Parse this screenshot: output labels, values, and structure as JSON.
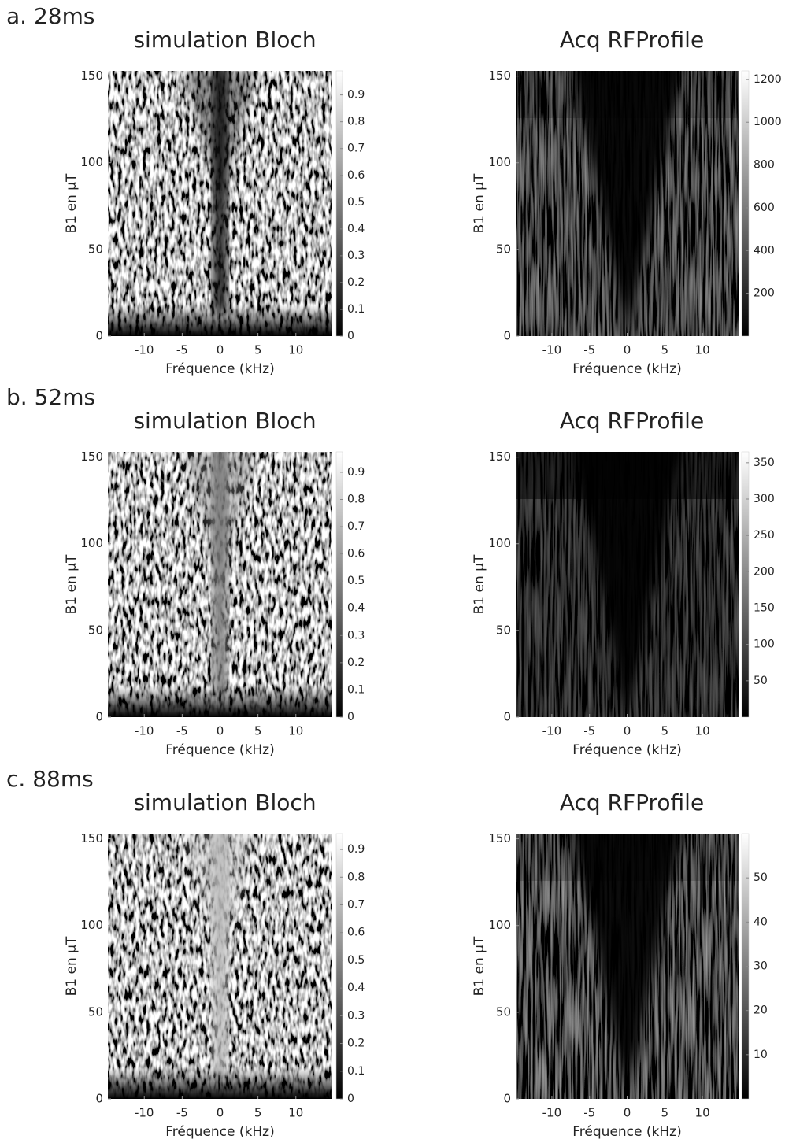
{
  "panels": [
    {
      "label": "a. 28ms"
    },
    {
      "label": "b. 52ms"
    },
    {
      "label": "c. 88ms"
    }
  ],
  "chart_data": [
    {
      "type": "heatmap",
      "title": "simulation Bloch",
      "xlabel": "Fréquence (kHz)",
      "ylabel": "B1 en µT",
      "xlim": [
        -14.8,
        14.8
      ],
      "ylim": [
        0,
        153
      ],
      "xticks": [
        -10,
        -5,
        0,
        5,
        10
      ],
      "yticks": [
        0,
        50,
        100,
        150
      ],
      "colormap": "gray",
      "clim": [
        0,
        0.99
      ],
      "cticks": [
        0,
        0.1,
        0.2,
        0.3,
        0.4,
        0.5,
        0.6,
        0.7,
        0.8,
        0.9
      ]
    },
    {
      "type": "heatmap",
      "title": "Acq RFProfile",
      "xlabel": "Fréquence (kHz)",
      "ylabel": "B1 en µT",
      "xlim": [
        -14.8,
        14.8
      ],
      "ylim": [
        0,
        153
      ],
      "xticks": [
        -10,
        -5,
        0,
        5,
        10
      ],
      "yticks": [
        0,
        50,
        100,
        150
      ],
      "colormap": "gray",
      "clim": [
        0,
        1240
      ],
      "cticks": [
        200,
        400,
        600,
        800,
        1000,
        1200
      ]
    },
    {
      "type": "heatmap",
      "title": "simulation Bloch",
      "xlabel": "Fréquence (kHz)",
      "ylabel": "B1 en µT",
      "xlim": [
        -14.8,
        14.8
      ],
      "ylim": [
        0,
        153
      ],
      "xticks": [
        -10,
        -5,
        0,
        5,
        10
      ],
      "yticks": [
        0,
        50,
        100,
        150
      ],
      "colormap": "gray",
      "clim": [
        0,
        0.975
      ],
      "cticks": [
        0,
        0.1,
        0.2,
        0.3,
        0.4,
        0.5,
        0.6,
        0.7,
        0.8,
        0.9
      ]
    },
    {
      "type": "heatmap",
      "title": "Acq RFProfile",
      "xlabel": "Fréquence (kHz)",
      "ylabel": "B1 en µT",
      "xlim": [
        -14.8,
        14.8
      ],
      "ylim": [
        0,
        153
      ],
      "xticks": [
        -10,
        -5,
        0,
        5,
        10
      ],
      "yticks": [
        0,
        50,
        100,
        150
      ],
      "colormap": "gray",
      "clim": [
        0,
        365
      ],
      "cticks": [
        50,
        100,
        150,
        200,
        250,
        300,
        350
      ]
    },
    {
      "type": "heatmap",
      "title": "simulation Bloch",
      "xlabel": "Fréquence (kHz)",
      "ylabel": "B1 en µT",
      "xlim": [
        -14.8,
        14.8
      ],
      "ylim": [
        0,
        153
      ],
      "xticks": [
        -10,
        -5,
        0,
        5,
        10
      ],
      "yticks": [
        0,
        50,
        100,
        150
      ],
      "colormap": "gray",
      "clim": [
        0,
        0.957
      ],
      "cticks": [
        0,
        0.1,
        0.2,
        0.3,
        0.4,
        0.5,
        0.6,
        0.7,
        0.8,
        0.9
      ]
    },
    {
      "type": "heatmap",
      "title": "Acq RFProfile",
      "xlabel": "Fréquence (kHz)",
      "ylabel": "B1 en µT",
      "xlim": [
        -14.8,
        14.8
      ],
      "ylim": [
        0,
        153
      ],
      "xticks": [
        -10,
        -5,
        0,
        5,
        10
      ],
      "yticks": [
        0,
        50,
        100,
        150
      ],
      "colormap": "gray",
      "clim": [
        0,
        60
      ],
      "cticks": [
        10,
        20,
        30,
        40,
        50
      ]
    }
  ]
}
